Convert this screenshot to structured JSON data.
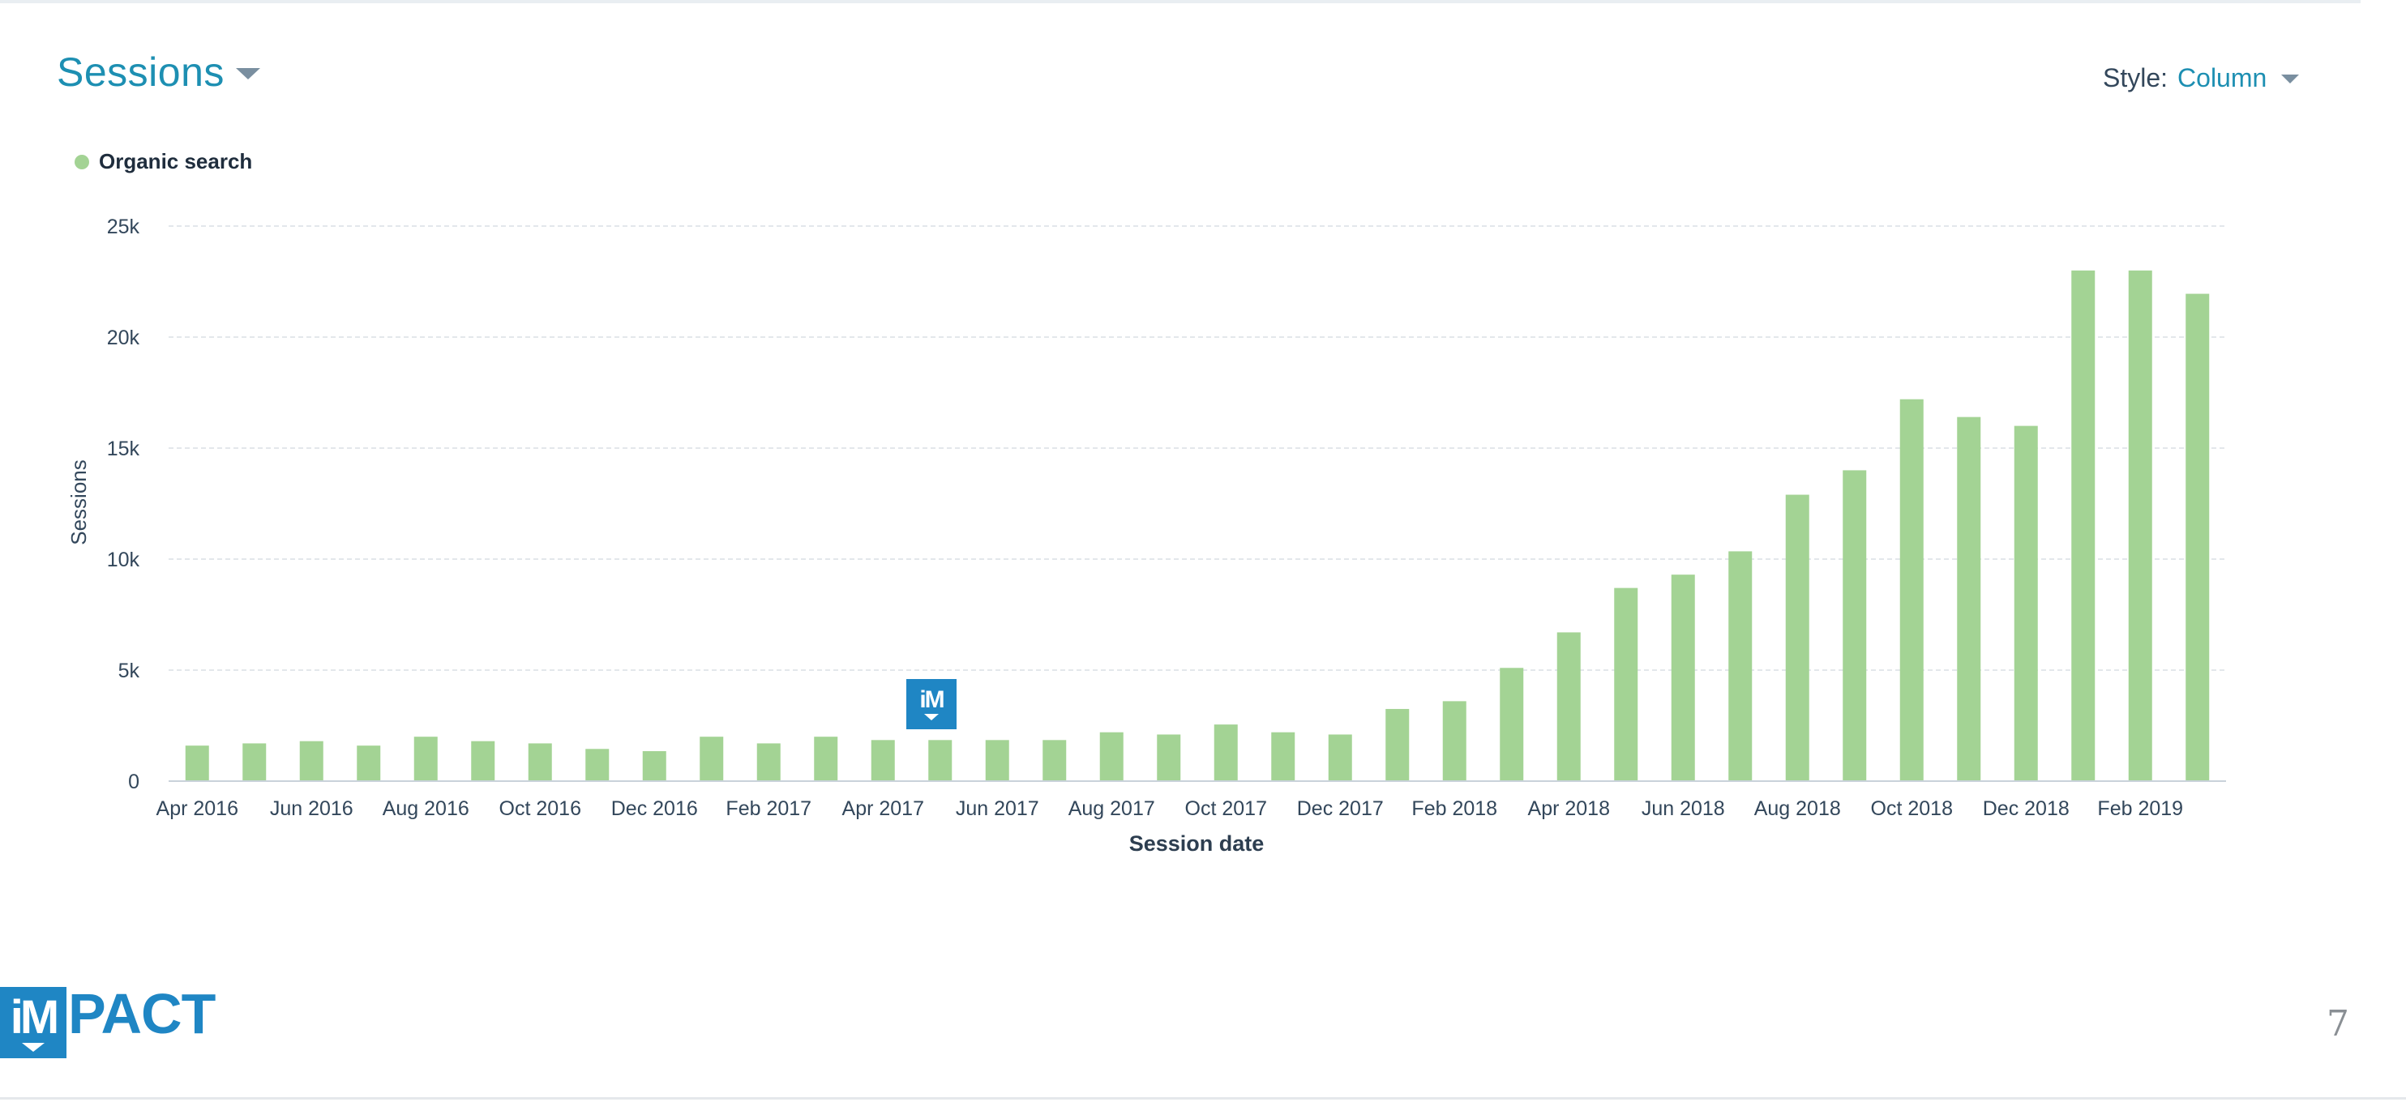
{
  "header": {
    "title": "Sessions",
    "style_label": "Style:",
    "style_value": "Column"
  },
  "legend": {
    "label": "Organic search",
    "color": "#a3d394"
  },
  "chart_data": {
    "type": "bar",
    "categories": [
      "Apr 2016",
      "May 2016",
      "Jun 2016",
      "Jul 2016",
      "Aug 2016",
      "Sep 2016",
      "Oct 2016",
      "Nov 2016",
      "Dec 2016",
      "Jan 2017",
      "Feb 2017",
      "Mar 2017",
      "Apr 2017",
      "May 2017",
      "Jun 2017",
      "Jul 2017",
      "Aug 2017",
      "Sep 2017",
      "Oct 2017",
      "Nov 2017",
      "Dec 2017",
      "Jan 2018",
      "Feb 2018",
      "Mar 2018",
      "Apr 2018",
      "May 2018",
      "Jun 2018",
      "Jul 2018",
      "Aug 2018",
      "Sep 2018",
      "Oct 2018",
      "Nov 2018",
      "Dec 2018",
      "Jan 2019",
      "Feb 2019",
      "Mar 2019"
    ],
    "series": [
      {
        "name": "Organic search",
        "values": [
          1600,
          1700,
          1800,
          1600,
          2000,
          1800,
          1700,
          1450,
          1350,
          2000,
          1700,
          2000,
          1850,
          1850,
          1850,
          1850,
          2200,
          2100,
          2550,
          2200,
          2100,
          3250,
          3600,
          5100,
          6700,
          8700,
          9300,
          10350,
          12900,
          14000,
          17200,
          16400,
          16000,
          23000,
          23000,
          21950
        ]
      }
    ],
    "xtick_labels": [
      "Apr 2016",
      "Jun 2016",
      "Aug 2016",
      "Oct 2016",
      "Dec 2016",
      "Feb 2017",
      "Apr 2017",
      "Jun 2017",
      "Aug 2017",
      "Oct 2017",
      "Dec 2017",
      "Feb 2018",
      "Apr 2018",
      "Jun 2018",
      "Aug 2018",
      "Oct 2018",
      "Dec 2018",
      "Feb 2019"
    ],
    "ytick_labels": [
      "0",
      "5k",
      "10k",
      "15k",
      "20k",
      "25k"
    ],
    "ytick_values": [
      0,
      5000,
      10000,
      15000,
      20000,
      25000
    ],
    "ylim": [
      0,
      25000
    ],
    "xlabel": "Session date",
    "ylabel": "Sessions",
    "grid": true,
    "bar_color": "#a3d394"
  },
  "footer": {
    "watermark_text": "iM",
    "logo_box_text": "iM",
    "logo_rest_text": "PACT",
    "page_number": "7"
  }
}
